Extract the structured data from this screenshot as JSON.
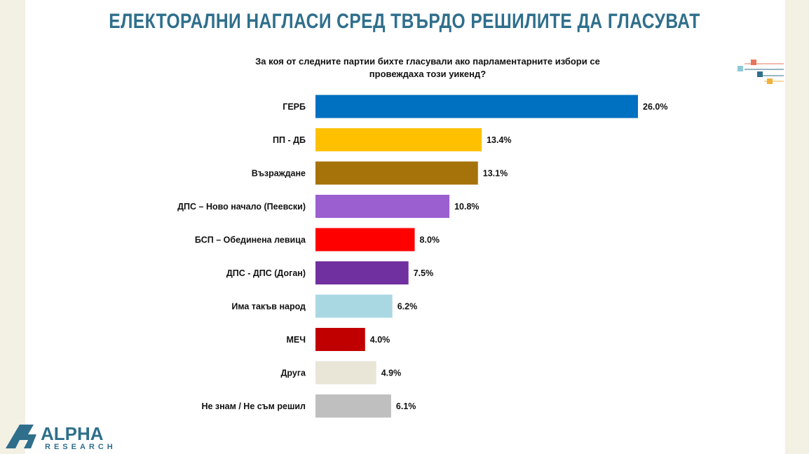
{
  "chart_data": {
    "type": "bar",
    "orientation": "horizontal",
    "title": "ЕЛЕКТОРАЛНИ НАГЛАСИ СРЕД ТВЪРДО РЕШИЛИТЕ ДА ГЛАСУВАТ",
    "subtitle": "За коя от следните партии бихте гласували ако парламентарните избори се провеждаха този уикенд?",
    "categories": [
      "ГЕРБ",
      "ПП - ДБ",
      "Възраждане",
      "ДПС – Ново начало (Пеевски)",
      "БСП – Обединена левица",
      "ДПС - ДПС (Доган)",
      "Има такъв народ",
      "МЕЧ",
      "Друга",
      "Не знам / Не съм решил"
    ],
    "values": [
      26.0,
      13.4,
      13.1,
      10.8,
      8.0,
      7.5,
      6.2,
      4.0,
      4.9,
      6.1
    ],
    "value_labels": [
      "26.0%",
      "13.4%",
      "13.1%",
      "10.8%",
      "8.0%",
      "7.5%",
      "6.2%",
      "4.0%",
      "4.9%",
      "6.1%"
    ],
    "colors": [
      "#0070c0",
      "#ffc000",
      "#a5730a",
      "#9b5fd0",
      "#ff0000",
      "#7030a0",
      "#a9d8e3",
      "#c00000",
      "#e9e6d8",
      "#bfbfbf"
    ]
  },
  "logo": {
    "name": "ALPHA",
    "tagline": "RESEARCH"
  }
}
